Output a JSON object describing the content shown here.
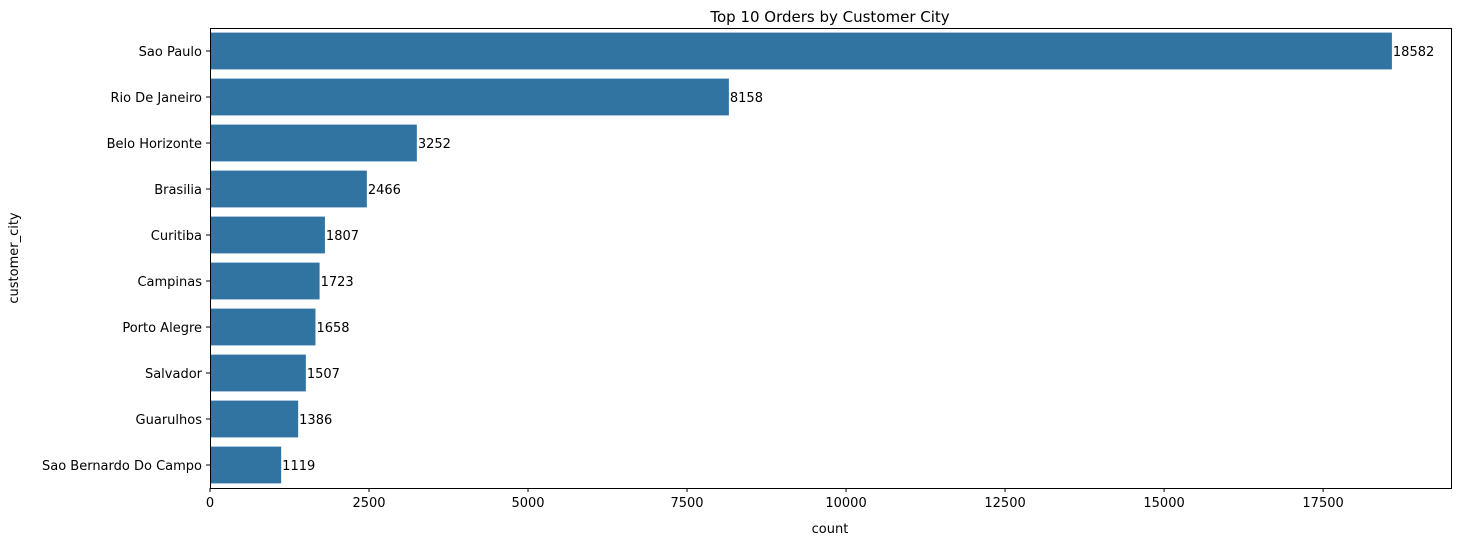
{
  "chart_data": {
    "type": "bar",
    "orientation": "horizontal",
    "title": "Top 10 Orders by Customer City",
    "xlabel": "count",
    "ylabel": "customer_city",
    "categories": [
      "Sao Paulo",
      "Rio De Janeiro",
      "Belo Horizonte",
      "Brasilia",
      "Curitiba",
      "Campinas",
      "Porto Alegre",
      "Salvador",
      "Guarulhos",
      "Sao Bernardo Do Campo"
    ],
    "values": [
      18582,
      8158,
      3252,
      2466,
      1807,
      1723,
      1658,
      1507,
      1386,
      1119
    ],
    "data_labels": [
      "18582",
      "8158",
      "3252",
      "2466",
      "1807",
      "1723",
      "1658",
      "1507",
      "1386",
      "1119"
    ],
    "xlim": [
      0,
      19511
    ],
    "xticks": [
      0,
      2500,
      5000,
      7500,
      10000,
      12500,
      15000,
      17500
    ],
    "xtick_labels": [
      "0",
      "2500",
      "5000",
      "7500",
      "10000",
      "12500",
      "15000",
      "17500"
    ],
    "grid": false,
    "legend": "none",
    "bar_color": "#3274a1"
  }
}
